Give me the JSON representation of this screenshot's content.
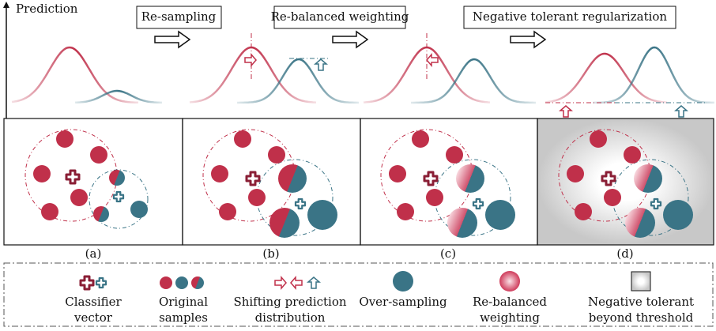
{
  "axis_label": "Prediction",
  "steps": [
    "Re-sampling",
    "Re-balanced weighting",
    "Negative tolerant regularization"
  ],
  "panels": [
    "(a)",
    "(b)",
    "(c)",
    "(d)"
  ],
  "legend": [
    {
      "lines": [
        "Classifier",
        "vector"
      ]
    },
    {
      "lines": [
        "Original",
        "samples"
      ]
    },
    {
      "lines": [
        "Shifting prediction",
        "distribution"
      ]
    },
    {
      "lines": [
        "Over-sampling"
      ]
    },
    {
      "lines": [
        "Re-balanced",
        "weighting"
      ]
    },
    {
      "lines": [
        "Negative tolerant",
        "beyond threshold"
      ]
    }
  ]
}
